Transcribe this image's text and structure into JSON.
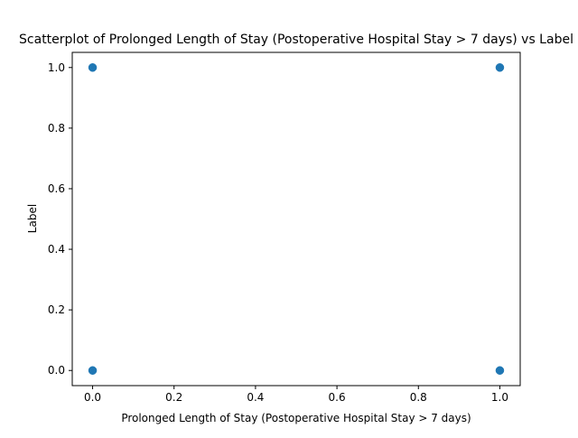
{
  "chart_data": {
    "type": "scatter",
    "title": "Scatterplot of Prolonged Length of Stay (Postoperative Hospital Stay > 7 days) vs Label",
    "xlabel": "Prolonged Length of Stay (Postoperative Hospital Stay > 7 days)",
    "ylabel": "Label",
    "xlim": [
      -0.05,
      1.05
    ],
    "ylim": [
      -0.05,
      1.05
    ],
    "xticks": [
      0.0,
      0.2,
      0.4,
      0.6,
      0.8,
      1.0
    ],
    "yticks": [
      0.0,
      0.2,
      0.4,
      0.6,
      0.8,
      1.0
    ],
    "xtick_labels": [
      "0.0",
      "0.2",
      "0.4",
      "0.6",
      "0.8",
      "1.0"
    ],
    "ytick_labels": [
      "0.0",
      "0.2",
      "0.4",
      "0.6",
      "0.8",
      "1.0"
    ],
    "grid": false,
    "marker_color": "#1f77b4",
    "points": [
      {
        "x": 0,
        "y": 1
      },
      {
        "x": 1,
        "y": 1
      },
      {
        "x": 0,
        "y": 0
      },
      {
        "x": 1,
        "y": 0
      }
    ]
  }
}
